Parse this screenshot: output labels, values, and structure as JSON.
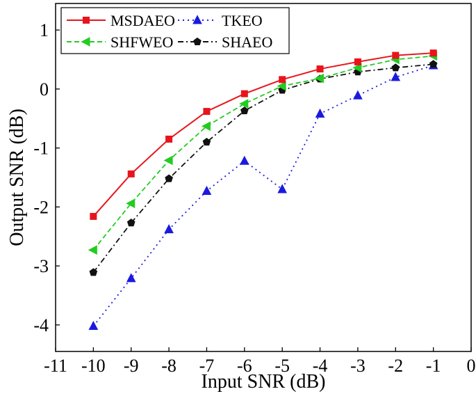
{
  "chart_data": {
    "type": "line",
    "title": "",
    "xlabel": "Input SNR (dB)",
    "ylabel": "Output SNR (dB)",
    "xlim": [
      -11,
      0
    ],
    "ylim": [
      -4.45,
      1.45
    ],
    "x_ticks": [
      -11,
      -10,
      -9,
      -8,
      -7,
      -6,
      -5,
      -4,
      -3,
      -2,
      -1,
      0
    ],
    "y_ticks": [
      -4,
      -3,
      -2,
      -1,
      0,
      1
    ],
    "x_tick_labels": [
      "-11",
      "-10",
      "-9",
      "-8",
      "-7",
      "-6",
      "-5",
      "-4",
      "-3",
      "-2",
      "-1",
      "0"
    ],
    "y_tick_labels": [
      "-4",
      "-3",
      "-2",
      "-1",
      "0",
      "1"
    ],
    "grid": false,
    "legend_position": "top-left",
    "x": [
      -10,
      -9,
      -8,
      -7,
      -6,
      -5,
      -4,
      -3,
      -2,
      -1
    ],
    "series": [
      {
        "name": "MSDAEO",
        "color": "#e8141c",
        "line_style": "solid",
        "marker": "square",
        "values": [
          -2.16,
          -1.44,
          -0.85,
          -0.38,
          -0.08,
          0.16,
          0.34,
          0.46,
          0.57,
          0.61
        ]
      },
      {
        "name": "TKEO",
        "color": "#1a1adf",
        "line_style": "dotted",
        "marker": "triangle",
        "values": [
          -4.02,
          -3.21,
          -2.38,
          -1.73,
          -1.22,
          -1.7,
          -0.42,
          -0.11,
          0.2,
          0.4
        ]
      },
      {
        "name": "SHFWEO",
        "color": "#22cc22",
        "line_style": "dashed",
        "marker": "left-triangle",
        "values": [
          -2.73,
          -1.94,
          -1.21,
          -0.63,
          -0.25,
          0.05,
          0.18,
          0.36,
          0.5,
          0.56
        ]
      },
      {
        "name": "SHAEO",
        "color": "#111111",
        "line_style": "dashdot",
        "marker": "pentagon",
        "values": [
          -3.11,
          -2.27,
          -1.52,
          -0.9,
          -0.37,
          -0.02,
          0.17,
          0.29,
          0.36,
          0.42
        ]
      }
    ]
  }
}
